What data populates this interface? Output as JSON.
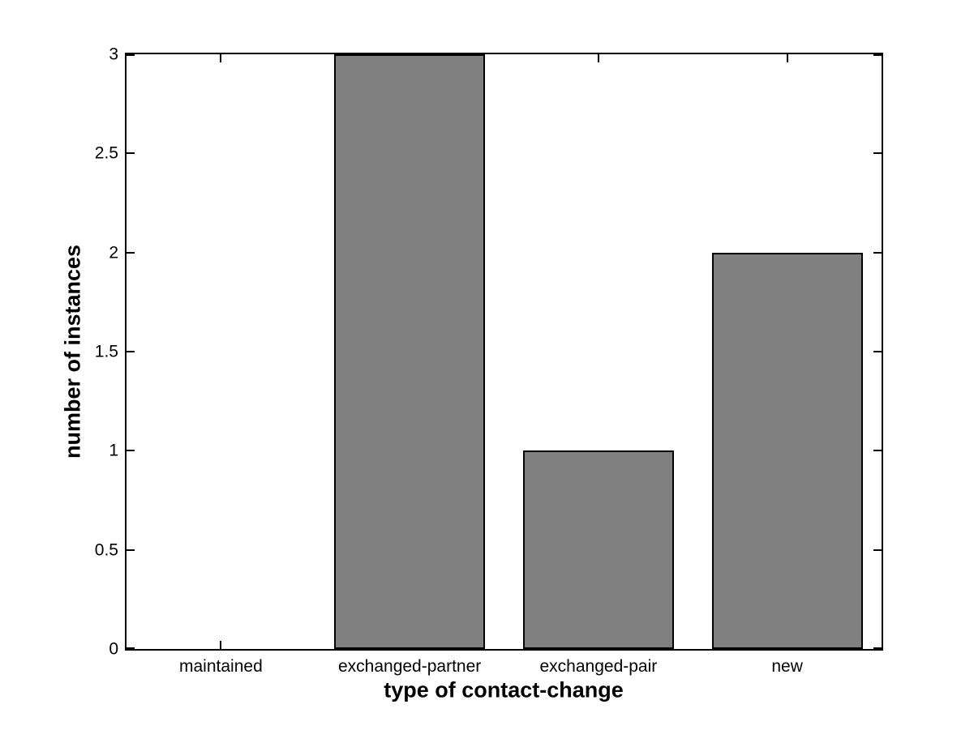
{
  "figure": {
    "background": "#ffffff"
  },
  "chart_data": {
    "type": "bar",
    "categories": [
      "maintained",
      "exchanged-partner",
      "exchanged-pair",
      "new"
    ],
    "values": [
      0,
      3,
      1,
      2
    ],
    "xlabel": "type of contact-change",
    "ylabel": "number of instances",
    "ylim": [
      0,
      3
    ],
    "yticks": [
      0,
      0.5,
      1,
      1.5,
      2,
      2.5,
      3
    ],
    "ytick_labels": [
      "0",
      "0.5",
      "1",
      "1.5",
      "2",
      "2.5",
      "3"
    ],
    "bar_color": "#808080",
    "bar_edge_color": "#000000",
    "axis_color": "#000000",
    "bar_width_fraction": 0.8,
    "grid": false,
    "box": true,
    "tick_direction": "in",
    "legend_visible": false
  }
}
